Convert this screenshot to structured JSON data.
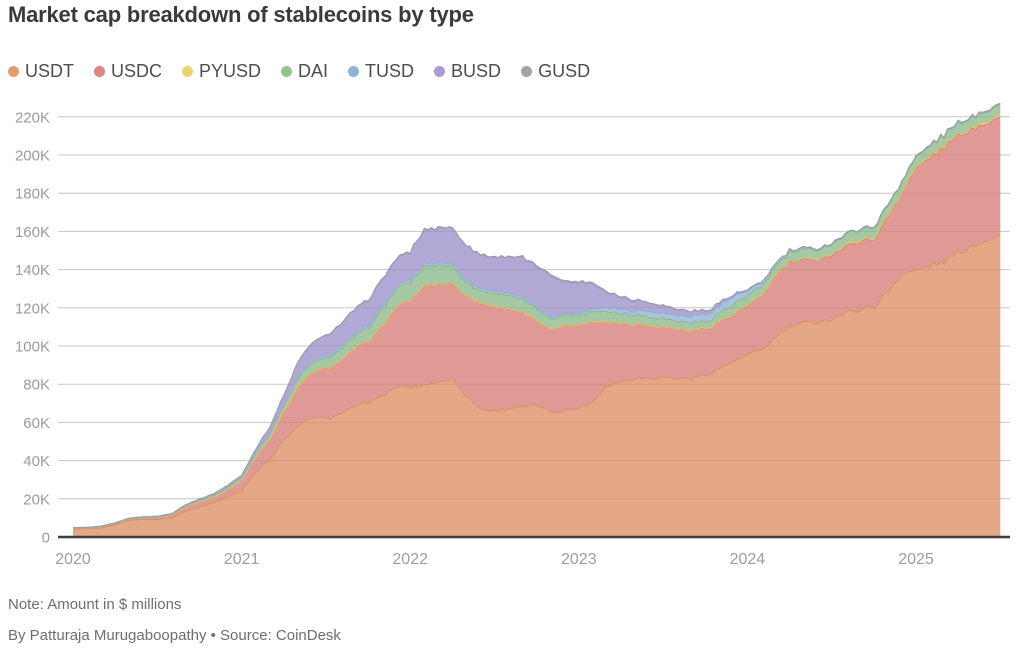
{
  "title": "Market cap breakdown of stablecoins by type",
  "footer": {
    "note": "Note: Amount in $ millions",
    "byline": "By Patturaja Murugaboopathy  • Source: CoinDesk"
  },
  "chart_data": {
    "type": "area",
    "stacked": true,
    "title": "Market cap breakdown of stablecoins by type",
    "unit_note": "Amount in $ millions",
    "x_unit": "month",
    "x_range": [
      "2020-01",
      "2025-07"
    ],
    "x_tick_labels": [
      "2020",
      "2021",
      "2022",
      "2023",
      "2024",
      "2025"
    ],
    "y_tick_labels": [
      "0",
      "20K",
      "40K",
      "60K",
      "80K",
      "100K",
      "120K",
      "140K",
      "160K",
      "180K",
      "200K",
      "220K"
    ],
    "y_tick_step": 20000,
    "ylim": [
      0,
      230000
    ],
    "grid": true,
    "legend_position": "top",
    "colors": {
      "grid_line": "#d9d9d9",
      "axis_line": "#3e3e3e",
      "tick_label": "#9c9c9c"
    },
    "series": [
      {
        "name": "USDT",
        "color": "#e4a887",
        "edge_color": "#d88f66",
        "dot_color": "#e69b72",
        "values": [
          4100,
          4300,
          4650,
          6350,
          8800,
          9200,
          9200,
          10000,
          13400,
          15700,
          17900,
          20900,
          24400,
          34000,
          40500,
          51000,
          58000,
          62500,
          62000,
          64500,
          68000,
          70500,
          73500,
          78300,
          78400,
          79500,
          81200,
          82700,
          74000,
          67000,
          65900,
          67500,
          67900,
          69100,
          65400,
          66200,
          67600,
          70900,
          79400,
          81500,
          83100,
          83200,
          83800,
          82900,
          83200,
          84500,
          88300,
          91700,
          95000,
          97800,
          104500,
          110000,
          111800,
          112700,
          114300,
          117000,
          119200,
          120700,
          128500,
          138000,
          139500,
          142200,
          144000,
          148800,
          152500,
          156000,
          158000
        ]
      },
      {
        "name": "USDC",
        "color": "#e09a95",
        "edge_color": "#d4817b",
        "dot_color": "#dd8683",
        "values": [
          520,
          460,
          690,
          730,
          730,
          930,
          1100,
          1400,
          2400,
          2800,
          2900,
          3900,
          5200,
          8000,
          10800,
          14500,
          20200,
          24100,
          26200,
          27500,
          30500,
          32300,
          37000,
          42200,
          45600,
          52500,
          51500,
          50500,
          52300,
          55600,
          54600,
          52100,
          50000,
          44000,
          43500,
          44600,
          43300,
          42200,
          33500,
          30600,
          29100,
          27600,
          26500,
          26000,
          25100,
          24600,
          24300,
          24600,
          25600,
          28200,
          32300,
          33600,
          32600,
          32500,
          33600,
          34600,
          35700,
          35200,
          39200,
          42400,
          53200,
          56300,
          59700,
          61500,
          61000,
          61500,
          62000
        ]
      },
      {
        "name": "PYUSD",
        "color": "#eed883",
        "edge_color": "#e2c558",
        "dot_color": "#ecd26f",
        "values": [
          0,
          0,
          0,
          0,
          0,
          0,
          0,
          0,
          0,
          0,
          0,
          0,
          0,
          0,
          0,
          0,
          0,
          0,
          0,
          0,
          0,
          0,
          0,
          0,
          0,
          0,
          0,
          0,
          0,
          0,
          0,
          0,
          0,
          0,
          0,
          0,
          0,
          0,
          0,
          0,
          0,
          0,
          0,
          25,
          45,
          110,
          160,
          300,
          300,
          310,
          300,
          340,
          400,
          420,
          530,
          1000,
          800,
          700,
          560,
          500,
          580,
          780,
          820,
          810,
          900,
          950,
          1000
        ]
      },
      {
        "name": "DAI",
        "color": "#a5c9a4",
        "edge_color": "#8bb98a",
        "dot_color": "#92c391",
        "values": [
          100,
          110,
          90,
          90,
          110,
          130,
          200,
          410,
          440,
          580,
          900,
          1100,
          1300,
          1800,
          2500,
          3300,
          4200,
          4800,
          5100,
          5600,
          6200,
          6500,
          8500,
          9000,
          9200,
          9800,
          9600,
          8800,
          6600,
          6300,
          6900,
          7000,
          6900,
          5800,
          5200,
          5100,
          5100,
          5200,
          5300,
          4900,
          4700,
          4500,
          4200,
          3900,
          3800,
          3600,
          4200,
          5300,
          4900,
          4700,
          4500,
          4800,
          5100,
          5100,
          5100,
          5200,
          5300,
          5500,
          5400,
          5300,
          5300,
          5400,
          5400,
          5400,
          5400,
          5400,
          5400
        ]
      },
      {
        "name": "TUSD",
        "color": "#a9c4e0",
        "edge_color": "#8fb2d4",
        "dot_color": "#8ab5d9",
        "values": [
          140,
          140,
          135,
          135,
          140,
          145,
          150,
          150,
          220,
          280,
          290,
          300,
          310,
          360,
          400,
          440,
          550,
          750,
          1000,
          1100,
          1200,
          1200,
          1250,
          1300,
          1400,
          1400,
          1350,
          1300,
          1200,
          1150,
          1100,
          1050,
          1000,
          850,
          900,
          900,
          1000,
          1300,
          2000,
          2100,
          2000,
          3100,
          2800,
          2800,
          3400,
          3400,
          3800,
          3900,
          2400,
          1800,
          1300,
          900,
          700,
          500,
          500,
          500,
          500,
          500,
          500,
          500,
          500,
          500,
          500,
          500,
          500,
          500,
          500
        ]
      },
      {
        "name": "BUSD",
        "color": "#b1a8d5",
        "edge_color": "#9d92c8",
        "dot_color": "#a99cd3",
        "values": [
          30,
          50,
          90,
          120,
          150,
          150,
          200,
          300,
          400,
          550,
          650,
          800,
          1100,
          1900,
          3300,
          4900,
          8200,
          9700,
          11100,
          12100,
          12900,
          13500,
          14500,
          14600,
          14900,
          17500,
          18300,
          18800,
          18300,
          17500,
          17800,
          19000,
          20500,
          21700,
          22100,
          16600,
          16100,
          13300,
          8000,
          6500,
          5500,
          4300,
          3900,
          3300,
          2600,
          2100,
          1700,
          1000,
          700,
          400,
          100,
          70,
          60,
          60,
          60,
          60,
          60,
          60,
          60,
          60,
          60,
          60,
          60,
          60,
          60,
          60,
          60
        ]
      },
      {
        "name": "GUSD",
        "color": "#b3b3b3",
        "edge_color": "#9e9e9e",
        "dot_color": "#a3a3a3",
        "values": [
          5,
          5,
          5,
          8,
          10,
          10,
          12,
          15,
          17,
          20,
          22,
          25,
          30,
          60,
          80,
          130,
          180,
          200,
          210,
          220,
          250,
          290,
          300,
          300,
          300,
          300,
          290,
          250,
          220,
          250,
          300,
          350,
          400,
          500,
          600,
          600,
          600,
          550,
          500,
          450,
          400,
          350,
          300,
          250,
          220,
          200,
          180,
          160,
          150,
          140,
          130,
          120,
          110,
          100,
          90,
          80,
          70,
          70,
          70,
          70,
          70,
          70,
          70,
          70,
          70,
          70,
          70
        ]
      }
    ]
  }
}
